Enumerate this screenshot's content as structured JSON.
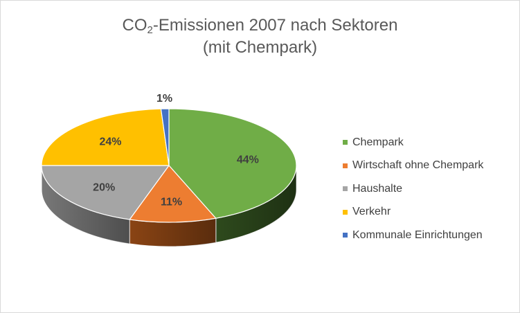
{
  "chart_data": {
    "type": "pie",
    "title_parts": [
      "CO",
      "2",
      "-Emissionen 2007 nach Sektoren"
    ],
    "subtitle": "(mit Chempark)",
    "categories": [
      "Chempark",
      "Wirtschaft ohne Chempark",
      "Haushalte",
      "Verkehr",
      "Kommunale Einrichtungen"
    ],
    "values": [
      44,
      11,
      20,
      24,
      1
    ],
    "value_labels": [
      "44%",
      "11%",
      "20%",
      "24%",
      "1%"
    ],
    "colors": [
      "#70ad47",
      "#ed7d31",
      "#a5a5a5",
      "#ffc000",
      "#4472c4"
    ],
    "side_colors": [
      "#2e4a1d",
      "#8a4414",
      "#787878",
      "#a57d00",
      "#2c4b80"
    ],
    "legend_position": "right"
  }
}
